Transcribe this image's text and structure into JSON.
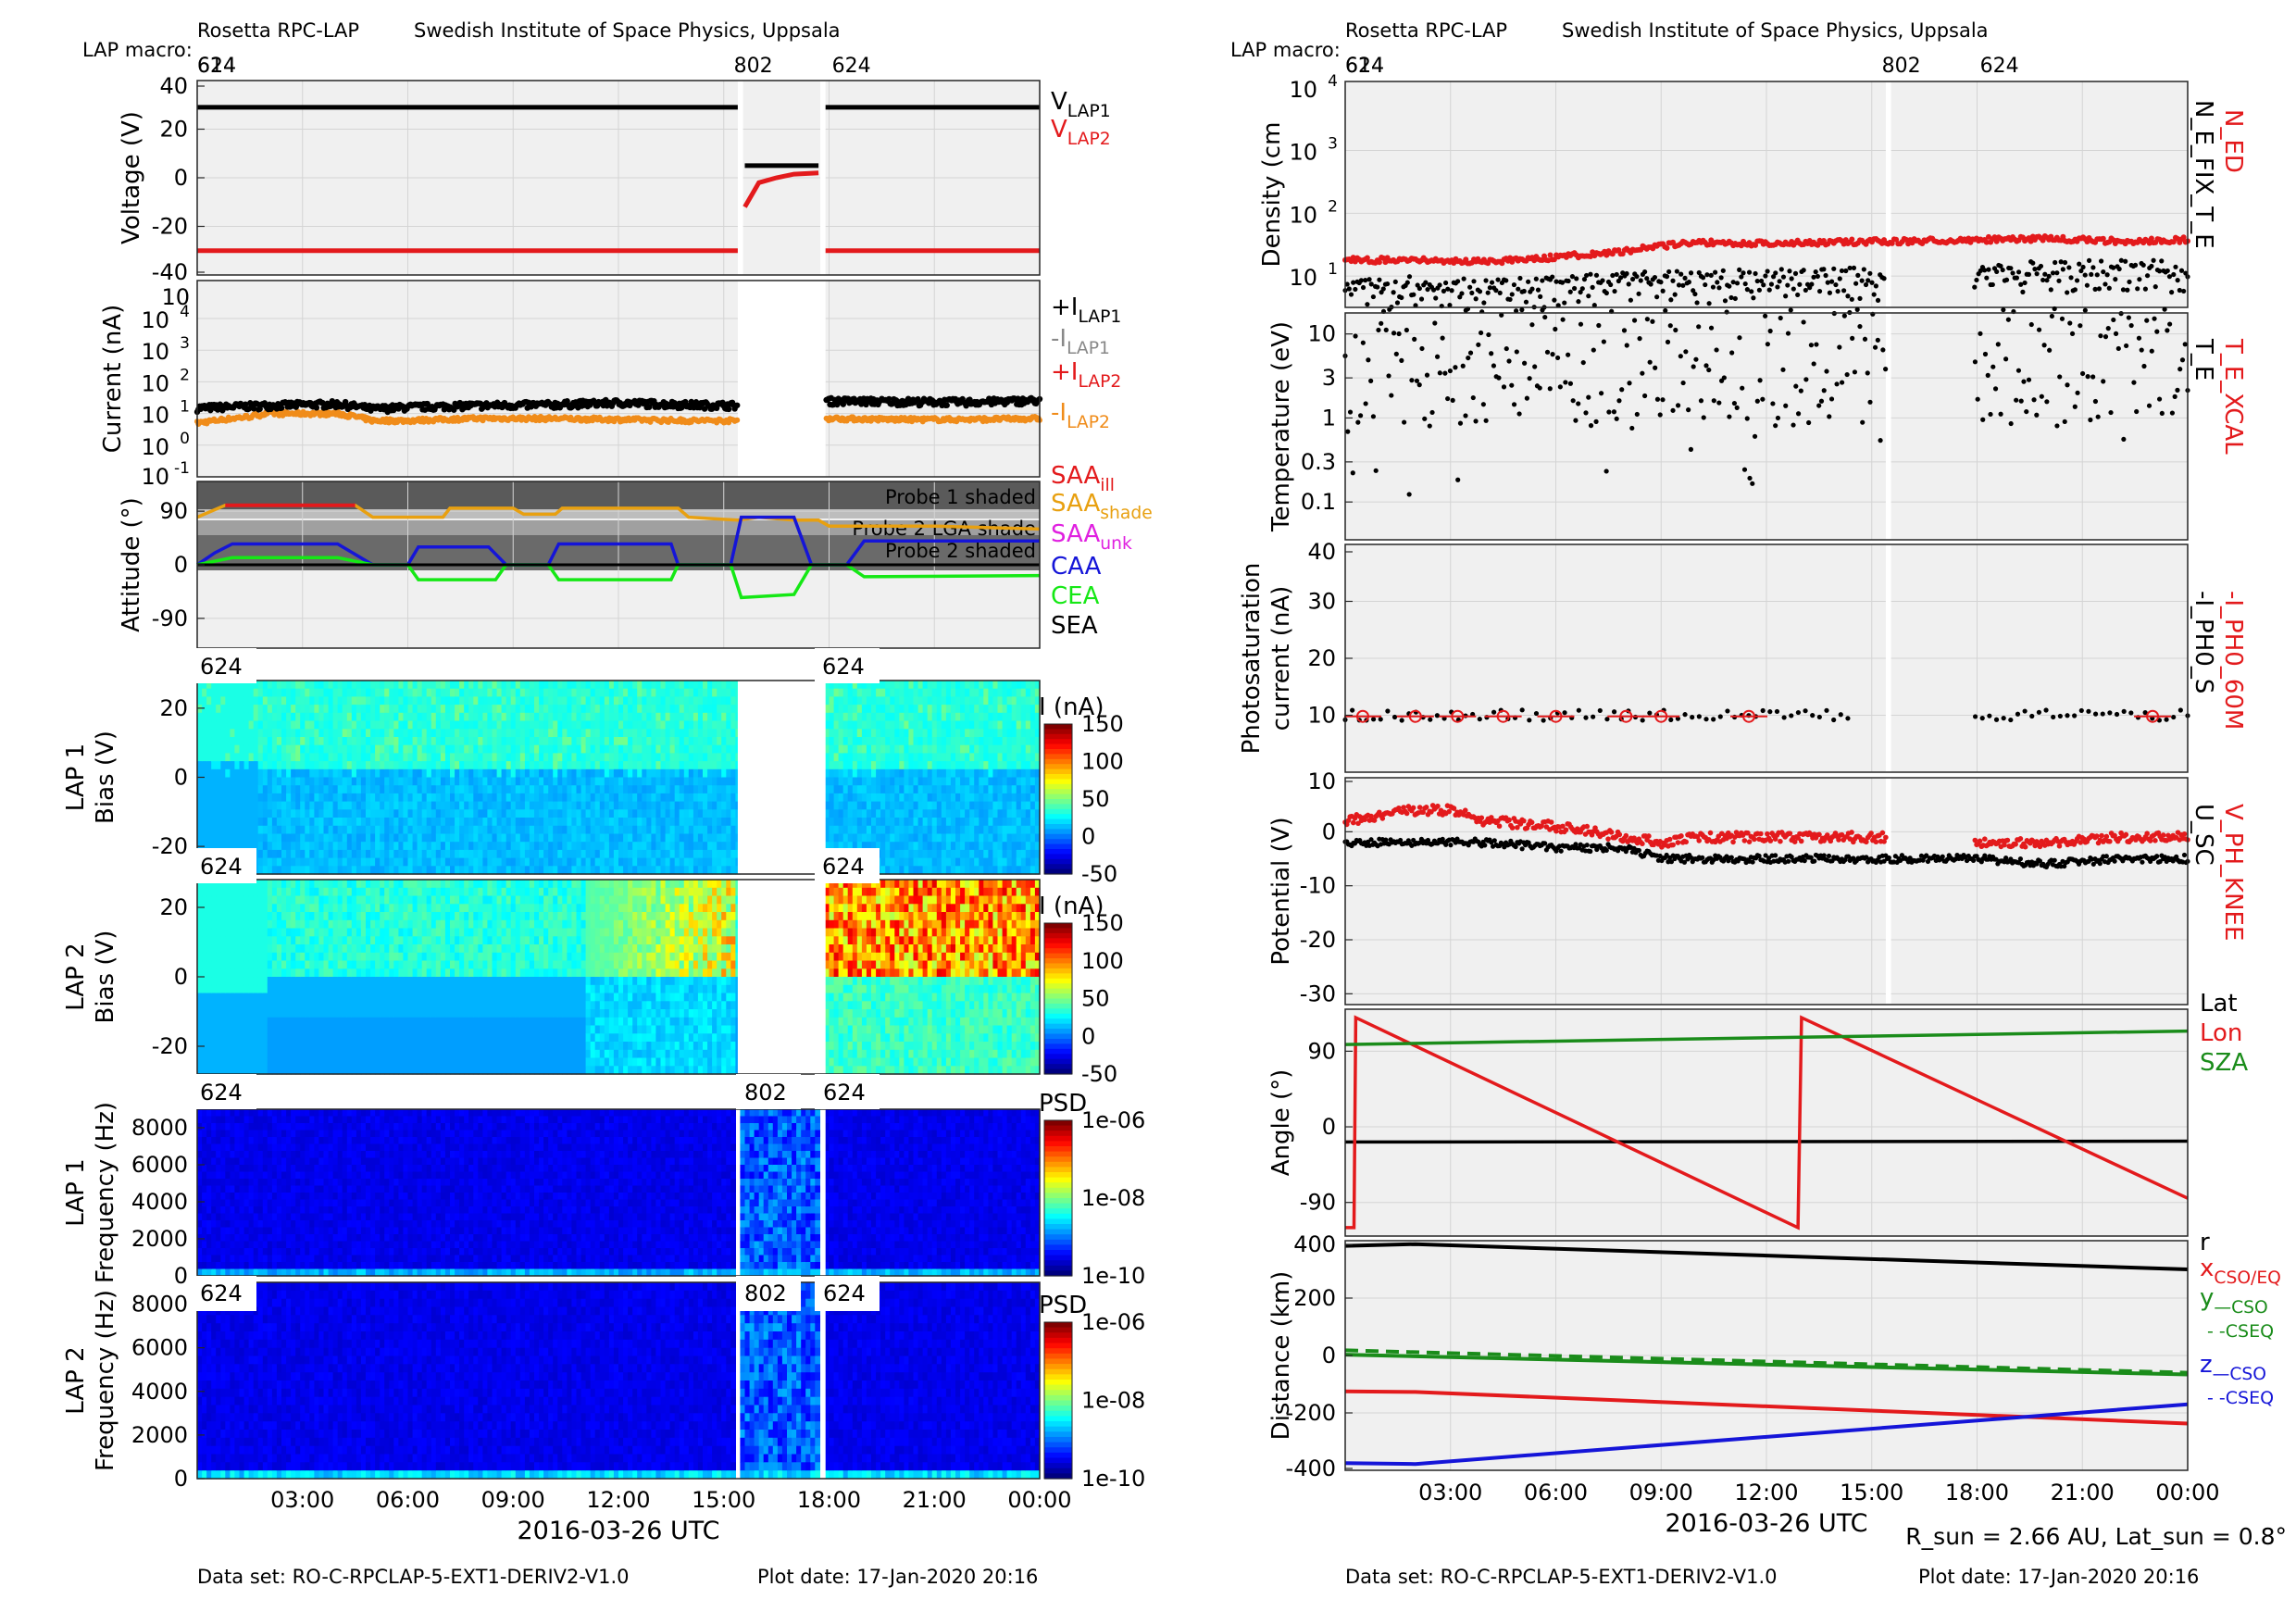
{
  "header": {
    "instrument": "Rosetta RPC-LAP",
    "institute": "Swedish Institute of Space Physics, Uppsala",
    "macro_label": "LAP macro:",
    "macro_start": "614",
    "macro_labels": [
      "624",
      "802",
      "624"
    ]
  },
  "footer": {
    "dataset": "Data set: RO-C-RPCLAP-5-EXT1-DERIV2-V1.0",
    "plot_date": "Plot date: 17-Jan-2020 20:16",
    "xlabel": "2016-03-26 UTC",
    "sun_info": "R_sun = 2.66 AU, Lat_sun = 0.8°"
  },
  "chart_data": [
    {
      "type": "scatter",
      "panel": "voltage",
      "ylabel": "Voltage (V)",
      "ylim": [
        -40,
        40
      ],
      "yticks": [
        "40",
        "20",
        "0",
        "-20",
        "-40"
      ],
      "grid": true,
      "x_unit": "hours since 2016-03-26 00:00",
      "series": [
        {
          "name": "V_LAP1",
          "color": "#000000",
          "segments": [
            {
              "x": [
                0,
                15.4
              ],
              "y": [
                29,
                29
              ]
            },
            {
              "x": [
                15.6,
                17.7
              ],
              "y": [
                5,
                5
              ]
            },
            {
              "x": [
                17.9,
                24
              ],
              "y": [
                29,
                29
              ]
            }
          ]
        },
        {
          "name": "V_LAP2",
          "color": "#e31a1c",
          "segments": [
            {
              "x": [
                0,
                15.4
              ],
              "y": [
                -30,
                -30
              ]
            },
            {
              "x": [
                15.6,
                16.0,
                16.5,
                17.0,
                17.7
              ],
              "y": [
                -12,
                -2,
                0,
                1.5,
                2
              ]
            },
            {
              "x": [
                17.9,
                24
              ],
              "y": [
                -30,
                -30
              ]
            }
          ]
        }
      ],
      "legend": [
        "V_LAP1",
        "V_LAP2"
      ]
    },
    {
      "type": "scatter",
      "panel": "current",
      "ylabel": "Current (nA)",
      "yscale": "log",
      "yticks": [
        "10^4",
        "10^3",
        "10^2",
        "10^1",
        "10^0",
        "10^-1"
      ],
      "legend": [
        "+I_LAP1",
        "-I_LAP1",
        "+I_LAP2",
        "-I_LAP2"
      ],
      "series": [
        {
          "name": "+I_LAP1",
          "color": "#000000",
          "x": [
            0,
            2,
            4,
            5,
            6,
            8,
            10,
            12,
            14,
            15.4,
            17.9,
            20,
            22,
            24
          ],
          "y": [
            15,
            18,
            20,
            14,
            16,
            18,
            19,
            22,
            19,
            18,
            25,
            24,
            23,
            26
          ]
        },
        {
          "name": "-I_LAP2",
          "color": "#f08c1a",
          "x": [
            0,
            1.5,
            2,
            4,
            5,
            6,
            8,
            10,
            12,
            14,
            15.4,
            17.9,
            20,
            22,
            24
          ],
          "y": [
            5,
            8,
            10,
            10,
            6,
            6,
            7,
            7,
            6.5,
            6,
            6,
            7,
            6.5,
            6.5,
            7
          ]
        }
      ]
    },
    {
      "type": "line",
      "panel": "attitude",
      "ylabel": "Attitude (°)",
      "ylim": [
        -140,
        140
      ],
      "yticks": [
        "90",
        "0",
        "-90"
      ],
      "shade_labels": [
        "Probe 1 shaded",
        "Probe 2 LGA shade",
        "Probe 2 shaded"
      ],
      "legend": [
        "SAA_ill",
        "SAA_shade",
        "SAA_unk",
        "CAA",
        "CEA",
        "SEA"
      ],
      "series": [
        {
          "name": "SAA",
          "color": "#e8a010",
          "x": [
            0,
            0.8,
            4.5,
            5,
            7,
            7.2,
            9,
            9.3,
            10.2,
            10.4,
            13.7,
            14,
            15.4,
            16,
            17,
            17.7,
            18,
            21,
            24
          ],
          "y": [
            80,
            100,
            100,
            80,
            80,
            95,
            95,
            85,
            85,
            95,
            95,
            80,
            75,
            80,
            75,
            75,
            65,
            65,
            60
          ]
        },
        {
          "name": "CAA",
          "color": "#1515d8",
          "x": [
            0,
            0.5,
            1,
            4,
            5,
            6,
            6.3,
            8.3,
            8.8,
            10,
            10.3,
            13.5,
            13.7,
            15.2,
            15.5,
            17,
            17.5,
            18.5,
            19,
            24
          ],
          "y": [
            0,
            20,
            35,
            35,
            0,
            0,
            30,
            30,
            0,
            0,
            35,
            35,
            0,
            0,
            80,
            80,
            0,
            0,
            40,
            40
          ]
        },
        {
          "name": "CEA",
          "color": "#15e815",
          "x": [
            0,
            1,
            4,
            5,
            6,
            6.3,
            8.5,
            8.8,
            10,
            10.3,
            13.5,
            13.7,
            15.2,
            15.5,
            17,
            17.5,
            18.5,
            19,
            24
          ],
          "y": [
            0,
            12,
            12,
            0,
            0,
            -25,
            -25,
            0,
            0,
            -25,
            -25,
            0,
            0,
            -55,
            -50,
            0,
            0,
            -20,
            -18
          ]
        },
        {
          "name": "SEA",
          "color": "#000000",
          "x": [
            0,
            24
          ],
          "y": [
            0,
            0
          ]
        }
      ]
    },
    {
      "type": "heatmap",
      "panel": "lap1_bias",
      "title_left": "624",
      "title_right": "624",
      "ylabel": "LAP 1 Bias (V)",
      "yticks": [
        "20",
        "0",
        "-20"
      ],
      "colorbar_label": "I (nA)",
      "colorbar_ticks": [
        "150",
        "100",
        "50",
        "0",
        "-50"
      ]
    },
    {
      "type": "heatmap",
      "panel": "lap2_bias",
      "title_left": "624",
      "title_right": "624",
      "ylabel": "LAP 2 Bias (V)",
      "yticks": [
        "20",
        "0",
        "-20"
      ],
      "colorbar_label": "I (nA)",
      "colorbar_ticks": [
        "150",
        "100",
        "50",
        "0",
        "-50"
      ]
    },
    {
      "type": "heatmap",
      "panel": "lap1_psd",
      "title_left": "624",
      "title_mid": "802",
      "title_right": "624",
      "ylabel": "LAP 1 Frequency (Hz)",
      "yticks": [
        "8000",
        "6000",
        "4000",
        "2000",
        "0"
      ],
      "colorbar_label": "PSD",
      "colorbar_ticks": [
        "1e-06",
        "1e-08",
        "1e-10"
      ]
    },
    {
      "type": "heatmap",
      "panel": "lap2_psd",
      "title_left": "624",
      "title_mid": "802",
      "title_right": "624",
      "ylabel": "LAP 2 Frequency (Hz)",
      "yticks": [
        "8000",
        "6000",
        "4000",
        "2000",
        "0"
      ],
      "colorbar_label": "PSD",
      "colorbar_ticks": [
        "1e-06",
        "1e-08",
        "1e-10"
      ],
      "xticks": [
        "03:00",
        "06:00",
        "09:00",
        "12:00",
        "15:00",
        "18:00",
        "21:00",
        "00:00"
      ]
    },
    {
      "type": "scatter",
      "panel": "density",
      "ylabel": "Density (cm^-3)",
      "yscale": "log",
      "yticks": [
        "10^4",
        "10^3",
        "10^2",
        "10^1"
      ],
      "legend": [
        "N_ED",
        "N_E_FIX_T_E"
      ],
      "series": [
        {
          "name": "N_ED",
          "color": "#e31a1c",
          "x": [
            0,
            2,
            4,
            6,
            8,
            9,
            10,
            12,
            14,
            16,
            18,
            20,
            22,
            24
          ],
          "y": [
            18,
            18,
            17,
            20,
            25,
            30,
            35,
            33,
            35,
            36,
            38,
            40,
            36,
            38
          ]
        },
        {
          "name": "N_E_FIX_T_E",
          "color": "#000000",
          "x": [
            0,
            2,
            4,
            6,
            8,
            10,
            12,
            14,
            15.4,
            17.9,
            20,
            22,
            24
          ],
          "y": [
            5,
            6,
            5,
            6,
            7,
            7,
            8,
            8,
            8,
            10,
            10,
            11,
            10
          ]
        }
      ]
    },
    {
      "type": "scatter",
      "panel": "temperature",
      "ylabel": "Temperature (eV)",
      "yscale": "log",
      "yticks": [
        "10",
        "3",
        "1",
        "0.3",
        "0.1"
      ],
      "legend": [
        "T_E_XCAL",
        "T_E"
      ]
    },
    {
      "type": "scatter",
      "panel": "photosat",
      "ylabel": "Photosaturation current (nA)",
      "ylim": [
        0,
        40
      ],
      "yticks": [
        "40",
        "30",
        "20",
        "10"
      ],
      "legend": [
        "-I_PH0_60M",
        "-I_PH0_S"
      ]
    },
    {
      "type": "scatter",
      "panel": "potential",
      "ylabel": "Potential (V)",
      "ylim": [
        -32,
        10
      ],
      "yticks": [
        "10",
        "0",
        "-10",
        "-20",
        "-30"
      ],
      "legend": [
        "V_PH_KNEE",
        "U_SC"
      ],
      "series": [
        {
          "name": "V_PH_KNEE",
          "color": "#e31a1c",
          "x": [
            0,
            2,
            3,
            4,
            6,
            7,
            8,
            9,
            10,
            12,
            14,
            15.4,
            17.9,
            20,
            22,
            24
          ],
          "y": [
            2,
            4,
            4,
            2,
            1,
            0,
            -1,
            -2,
            -1,
            -1,
            -1,
            -1,
            -2,
            -2,
            -1,
            -1
          ]
        },
        {
          "name": "U_SC",
          "color": "#000000",
          "x": [
            0,
            2,
            4,
            6,
            8,
            9,
            10,
            12,
            14,
            16,
            18,
            20,
            22,
            24
          ],
          "y": [
            -2,
            -2,
            -2,
            -3,
            -3,
            -5,
            -5,
            -5,
            -5,
            -5,
            -5,
            -6,
            -5,
            -5
          ]
        }
      ]
    },
    {
      "type": "line",
      "panel": "angle",
      "ylabel": "Angle (°)",
      "ylim": [
        -130,
        140
      ],
      "yticks": [
        "90",
        "0",
        "-90"
      ],
      "legend": [
        "Lat",
        "Lon",
        "SZA"
      ],
      "series": [
        {
          "name": "Lat",
          "color": "#000000",
          "x": [
            0,
            24
          ],
          "y": [
            -18,
            -17
          ]
        },
        {
          "name": "Lon",
          "color": "#e31a1c",
          "x": [
            0,
            0.25,
            0.3,
            12.9,
            13.0,
            24
          ],
          "y": [
            -120,
            -120,
            130,
            -120,
            130,
            -85
          ]
        },
        {
          "name": "SZA",
          "color": "#1a8c1a",
          "x": [
            0,
            24
          ],
          "y": [
            98,
            114
          ]
        }
      ]
    },
    {
      "type": "line",
      "panel": "distance",
      "ylabel": "Distance (km)",
      "ylim": [
        -400,
        400
      ],
      "yticks": [
        "400",
        "200",
        "0",
        "-200",
        "-400"
      ],
      "xticks": [
        "03:00",
        "06:00",
        "09:00",
        "12:00",
        "15:00",
        "18:00",
        "21:00",
        "00:00"
      ],
      "legend": [
        "r",
        "x_CSO/EQ",
        "y_CSO",
        "- -CSEQ",
        "z_CSO",
        "- -CSEQ"
      ],
      "series": [
        {
          "name": "r",
          "color": "#000000",
          "x": [
            0,
            2,
            24
          ],
          "y": [
            382,
            388,
            300
          ]
        },
        {
          "name": "x",
          "color": "#e31a1c",
          "x": [
            0,
            2,
            24
          ],
          "y": [
            -125,
            -127,
            -237
          ]
        },
        {
          "name": "y_CSO",
          "color": "#1a8c1a",
          "x": [
            0,
            24
          ],
          "y": [
            3,
            -66
          ]
        },
        {
          "name": "y_CSEQ",
          "color": "#1a8c1a",
          "dash": true,
          "x": [
            0,
            24
          ],
          "y": [
            18,
            -60
          ]
        },
        {
          "name": "z",
          "color": "#1515d8",
          "x": [
            0,
            2,
            24
          ],
          "y": [
            -375,
            -378,
            -170
          ]
        }
      ]
    }
  ]
}
